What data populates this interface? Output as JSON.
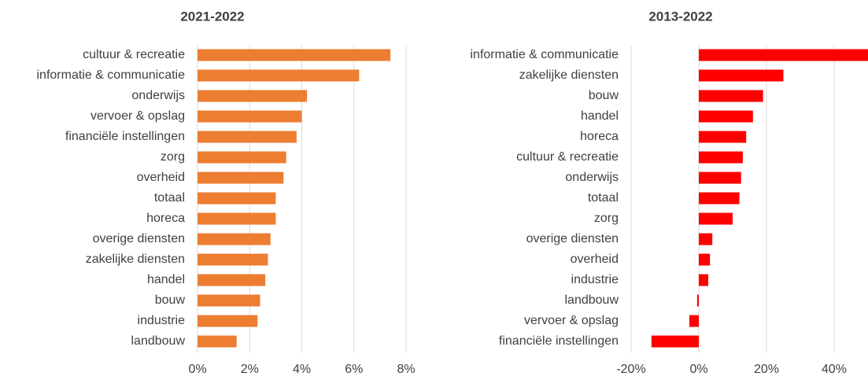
{
  "chart_data": [
    {
      "type": "bar",
      "orientation": "horizontal",
      "title": "2021-2022",
      "color": "#ed7d31",
      "categories": [
        "cultuur & recreatie",
        "informatie & communicatie",
        "onderwijs",
        "vervoer & opslag",
        "financiële instellingen",
        "zorg",
        "overheid",
        "totaal",
        "horeca",
        "overige diensten",
        "zakelijke diensten",
        "handel",
        "bouw",
        "industrie",
        "landbouw"
      ],
      "values": [
        7.4,
        6.2,
        4.2,
        4.0,
        3.8,
        3.4,
        3.3,
        3.0,
        3.0,
        2.8,
        2.7,
        2.6,
        2.4,
        2.3,
        1.5
      ],
      "xlim": [
        0,
        8
      ],
      "xticks": [
        {
          "value": 0,
          "label": "0%"
        },
        {
          "value": 2,
          "label": "2%"
        },
        {
          "value": 4,
          "label": "4%"
        },
        {
          "value": 6,
          "label": "6%"
        },
        {
          "value": 8,
          "label": "8%"
        }
      ],
      "grid": true
    },
    {
      "type": "bar",
      "orientation": "horizontal",
      "title": "2013-2022",
      "color": "#ff0000",
      "categories": [
        "informatie & communicatie",
        "zakelijke diensten",
        "bouw",
        "handel",
        "horeca",
        "cultuur & recreatie",
        "onderwijs",
        "totaal",
        "zorg",
        "overige diensten",
        "overheid",
        "industrie",
        "landbouw",
        "vervoer & opslag",
        "financiële instellingen"
      ],
      "values": [
        50,
        25,
        19,
        16,
        14,
        13,
        12.5,
        12,
        10,
        4,
        3.3,
        2.8,
        -0.5,
        -2.8,
        -14
      ],
      "xlim": [
        -20,
        50
      ],
      "xticks": [
        {
          "value": -20,
          "label": "-20%"
        },
        {
          "value": 0,
          "label": "0%"
        },
        {
          "value": 20,
          "label": "20%"
        },
        {
          "value": 40,
          "label": "40%"
        }
      ],
      "grid": true
    }
  ]
}
